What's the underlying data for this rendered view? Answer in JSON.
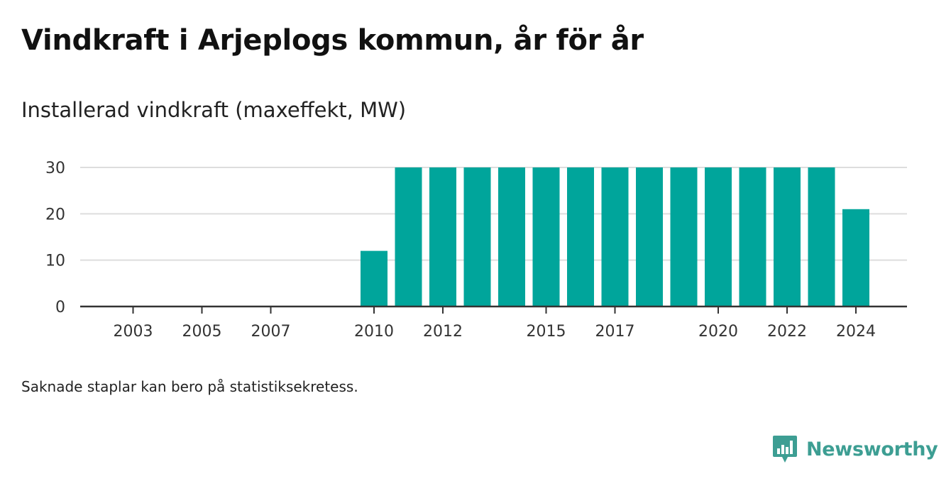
{
  "header": {
    "title": "Vindkraft i Arjeplogs kommun, år för år",
    "subtitle": "Installerad vindkraft (maxeffekt, MW)"
  },
  "footer": {
    "note": "Saknade staplar kan bero på statistiksekretess.",
    "brand": "Newsworthy"
  },
  "colors": {
    "bar": "#00a59b",
    "grid": "#dddddd",
    "axis": "#333333",
    "brand": "#3d9e93"
  },
  "chart_data": {
    "type": "bar",
    "title": "Vindkraft i Arjeplogs kommun, år för år",
    "ylabel": "Installerad vindkraft (maxeffekt, MW)",
    "xlabel": "",
    "x": [
      2003,
      2004,
      2005,
      2006,
      2007,
      2008,
      2009,
      2010,
      2011,
      2012,
      2013,
      2014,
      2015,
      2016,
      2017,
      2018,
      2019,
      2020,
      2021,
      2022,
      2023,
      2024
    ],
    "values": [
      null,
      null,
      null,
      null,
      null,
      null,
      null,
      12,
      30,
      30,
      30,
      30,
      30,
      30,
      30,
      30,
      30,
      30,
      30,
      30,
      30,
      21
    ],
    "ylim": [
      0,
      30
    ],
    "yticks": [
      0,
      10,
      20,
      30
    ],
    "xticks": [
      2003,
      2005,
      2007,
      2010,
      2012,
      2015,
      2017,
      2020,
      2022,
      2024
    ],
    "grid": true,
    "legend": "none"
  }
}
